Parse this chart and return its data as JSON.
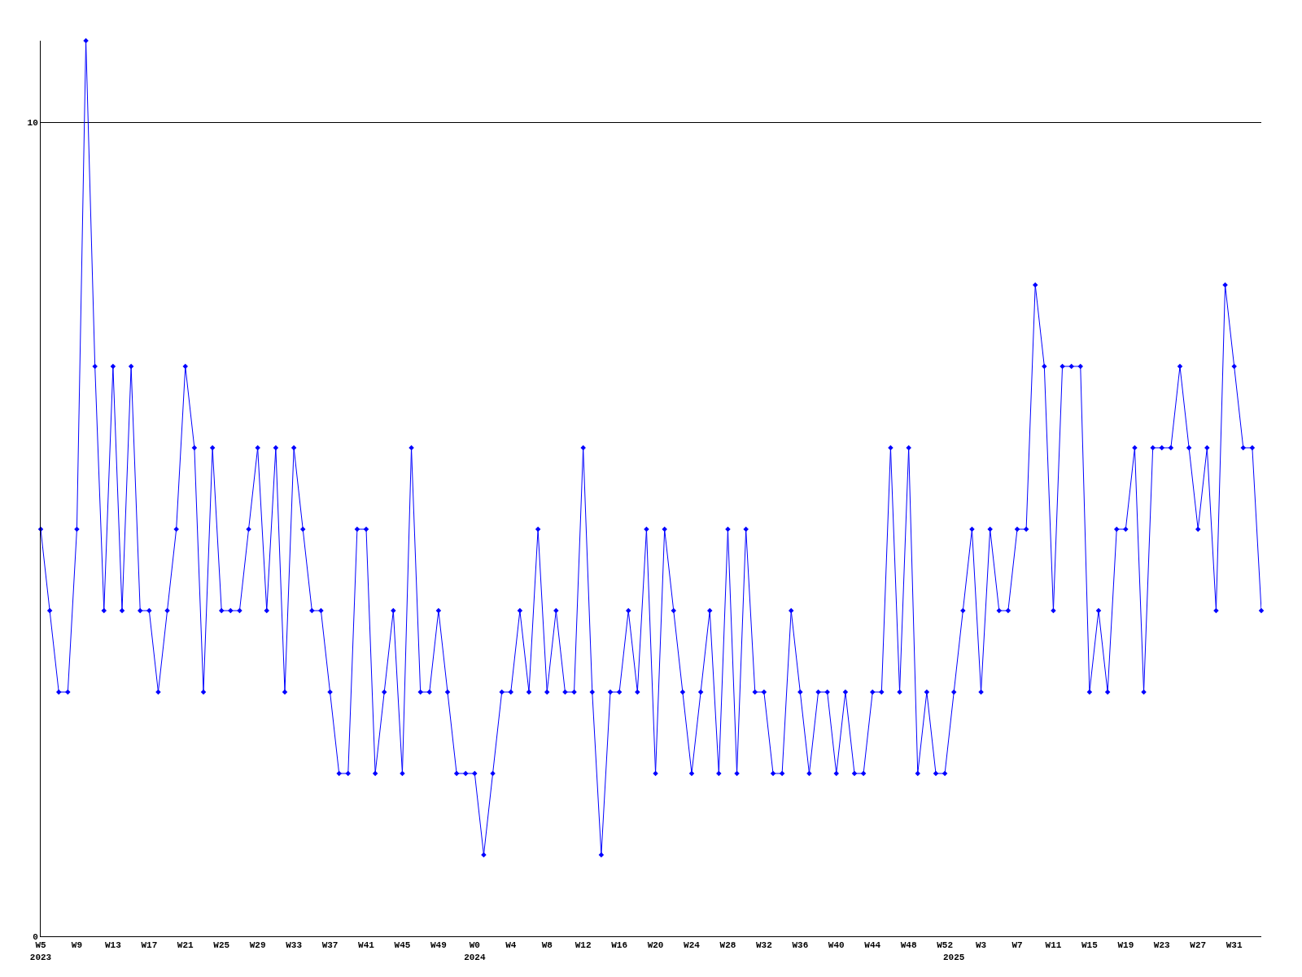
{
  "chart_data": {
    "type": "line",
    "categories": [
      "W5\n2023",
      null,
      null,
      null,
      "W9",
      null,
      null,
      null,
      "W13",
      null,
      null,
      null,
      "W17",
      null,
      null,
      null,
      "W21",
      null,
      null,
      null,
      "W25",
      null,
      null,
      null,
      "W29",
      null,
      null,
      null,
      "W33",
      null,
      null,
      null,
      "W37",
      null,
      null,
      null,
      "W41",
      null,
      null,
      null,
      "W45",
      null,
      null,
      null,
      "W49",
      null,
      null,
      null,
      "W0\n2024",
      null,
      null,
      null,
      "W4",
      null,
      null,
      null,
      "W8",
      null,
      null,
      null,
      "W12",
      null,
      null,
      null,
      "W16",
      null,
      null,
      null,
      "W20",
      null,
      null,
      null,
      "W24",
      null,
      null,
      null,
      "W28",
      null,
      null,
      null,
      "W32",
      null,
      null,
      null,
      "W36",
      null,
      null,
      null,
      "W40",
      null,
      null,
      null,
      "W44",
      null,
      null,
      null,
      "W48",
      null,
      null,
      null,
      "W52",
      "\n2025",
      null,
      null,
      "W3",
      null,
      null,
      null,
      "W7",
      null,
      null,
      null,
      "W11",
      null,
      null,
      null,
      "W15",
      null,
      null,
      null,
      "W19",
      null,
      null,
      null,
      "W23",
      null,
      null,
      null,
      "W27",
      null,
      null,
      null,
      "W31",
      null,
      null,
      null
    ],
    "series": [
      {
        "color": "#0000ff",
        "values": [
          5,
          4,
          3,
          3,
          5,
          11,
          7,
          4,
          7,
          4,
          7,
          4,
          4,
          3,
          4,
          5,
          7,
          6,
          3,
          6,
          4,
          4,
          4,
          5,
          6,
          4,
          6,
          3,
          6,
          5,
          4,
          4,
          3,
          2,
          2,
          5,
          5,
          2,
          3,
          4,
          2,
          6,
          3,
          3,
          4,
          3,
          2,
          2,
          2,
          1,
          2,
          3,
          3,
          4,
          3,
          5,
          3,
          4,
          3,
          3,
          6,
          3,
          1,
          3,
          3,
          4,
          3,
          5,
          2,
          5,
          4,
          3,
          2,
          3,
          4,
          2,
          5,
          2,
          5,
          3,
          3,
          2,
          2,
          4,
          3,
          2,
          3,
          3,
          2,
          3,
          2,
          2,
          3,
          3,
          6,
          3,
          6,
          2,
          3,
          2,
          2,
          3,
          4,
          5,
          3,
          5,
          4,
          4,
          5,
          5,
          8,
          7,
          4,
          7,
          7,
          7,
          3,
          4,
          3,
          5,
          5,
          6,
          3,
          6,
          6,
          6,
          7,
          6,
          5,
          6,
          4,
          8,
          7,
          6,
          6,
          4
        ]
      }
    ],
    "ylim": [
      0,
      11
    ],
    "yticks": [
      0,
      10
    ],
    "grid": "y",
    "marker": "diamond",
    "line_style": "solid"
  }
}
